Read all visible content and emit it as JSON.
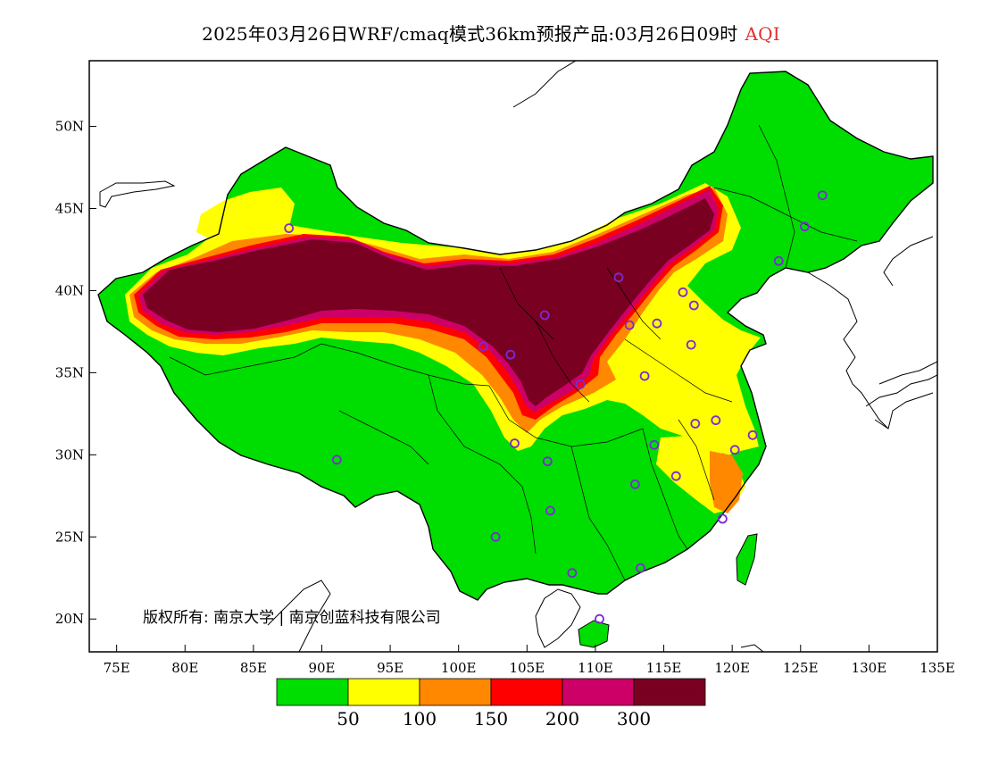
{
  "title": {
    "main": "2025年03月26日WRF/cmaq模式36km预报产品:03月26日09时",
    "variable": "AQI",
    "variable_color": "#e03030"
  },
  "map": {
    "lon_range": [
      73,
      135
    ],
    "lat_range": [
      18,
      54
    ],
    "lat_labels": [
      "50N",
      "45N",
      "40N",
      "35N",
      "30N",
      "25N",
      "20N"
    ],
    "lat_values": [
      50,
      45,
      40,
      35,
      30,
      25,
      20
    ],
    "lon_labels": [
      "75E",
      "80E",
      "85E",
      "90E",
      "95E",
      "100E",
      "105E",
      "110E",
      "115E",
      "120E",
      "125E",
      "130E",
      "135E"
    ],
    "lon_values": [
      75,
      80,
      85,
      90,
      95,
      100,
      105,
      110,
      115,
      120,
      125,
      130,
      135
    ],
    "copyright": "版权所有: 南京大学 | 南京创蓝科技有限公司"
  },
  "colorbar": {
    "colors": [
      "#00dd00",
      "#ffff00",
      "#ff8800",
      "#ff0000",
      "#cc0066",
      "#7a0022"
    ],
    "labels": [
      "50",
      "100",
      "150",
      "200",
      "300"
    ]
  },
  "stations": [
    {
      "lon": 87.6,
      "lat": 43.8
    },
    {
      "lon": 91.1,
      "lat": 29.7
    },
    {
      "lon": 101.8,
      "lat": 36.6
    },
    {
      "lon": 103.8,
      "lat": 36.1
    },
    {
      "lon": 106.3,
      "lat": 38.5
    },
    {
      "lon": 111.7,
      "lat": 40.8
    },
    {
      "lon": 112.5,
      "lat": 37.9
    },
    {
      "lon": 108.9,
      "lat": 34.3
    },
    {
      "lon": 113.6,
      "lat": 34.8
    },
    {
      "lon": 114.5,
      "lat": 38.0
    },
    {
      "lon": 116.4,
      "lat": 39.9
    },
    {
      "lon": 117.2,
      "lat": 39.1
    },
    {
      "lon": 117.0,
      "lat": 36.7
    },
    {
      "lon": 123.4,
      "lat": 41.8
    },
    {
      "lon": 125.3,
      "lat": 43.9
    },
    {
      "lon": 126.6,
      "lat": 45.8
    },
    {
      "lon": 104.1,
      "lat": 30.7
    },
    {
      "lon": 106.5,
      "lat": 29.6
    },
    {
      "lon": 106.7,
      "lat": 26.6
    },
    {
      "lon": 102.7,
      "lat": 25.0
    },
    {
      "lon": 108.3,
      "lat": 22.8
    },
    {
      "lon": 113.3,
      "lat": 23.1
    },
    {
      "lon": 110.3,
      "lat": 20.0
    },
    {
      "lon": 112.9,
      "lat": 28.2
    },
    {
      "lon": 114.3,
      "lat": 30.6
    },
    {
      "lon": 115.9,
      "lat": 28.7
    },
    {
      "lon": 117.3,
      "lat": 31.9
    },
    {
      "lon": 118.8,
      "lat": 32.1
    },
    {
      "lon": 120.2,
      "lat": 30.3
    },
    {
      "lon": 121.5,
      "lat": 31.2
    },
    {
      "lon": 119.3,
      "lat": 26.1
    }
  ]
}
